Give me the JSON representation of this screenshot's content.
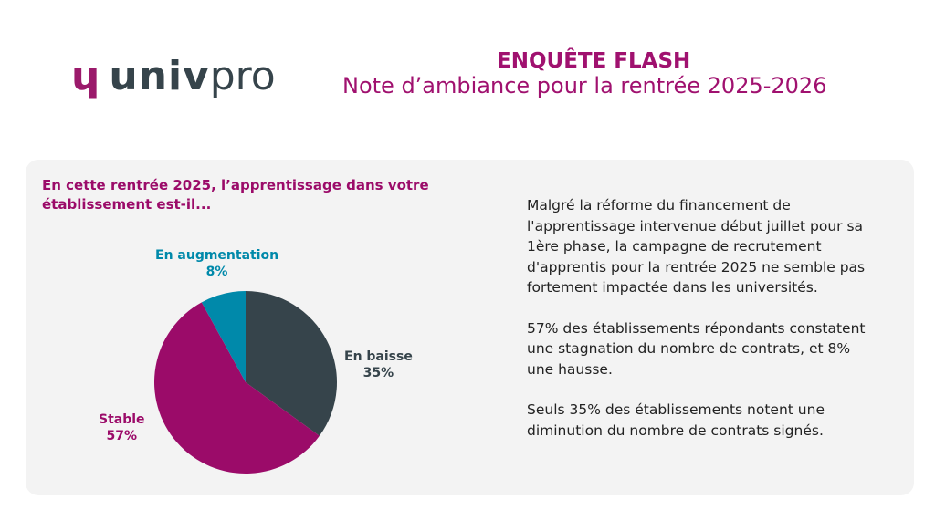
{
  "logo": {
    "mark": "ɥ",
    "text_bold": "univ",
    "text_light": "pro"
  },
  "header": {
    "title": "ENQUÊTE FLASH",
    "subtitle": "Note d’ambiance pour la rentrée 2025-2026"
  },
  "colors": {
    "accent": "#a0116f",
    "dark": "#36444b",
    "teal": "#0089aa",
    "magenta": "#9b0b69"
  },
  "chart_data": {
    "type": "pie",
    "title": "En cette rentrée 2025, l’apprentissage dans votre établissement est-il...",
    "slices": [
      {
        "label": "En baisse",
        "value": 35,
        "value_label": "35%",
        "color": "#36444b"
      },
      {
        "label": "Stable",
        "value": 57,
        "value_label": "57%",
        "color": "#9b0b69"
      },
      {
        "label": "En augmentation",
        "value": 8,
        "value_label": "8%",
        "color": "#0089aa"
      }
    ]
  },
  "text": {
    "p1": "Malgré la réforme du financement de l'apprentissage intervenue début juillet pour sa 1ère phase, la campagne de recrutement d'apprentis pour la rentrée 2025 ne semble pas fortement impactée dans les universités.",
    "p2": "57% des établissements répondants constatent une stagnation du nombre de contrats, et 8% une hausse.",
    "p3": "Seuls 35% des établissements notent une diminution du nombre de contrats signés."
  }
}
